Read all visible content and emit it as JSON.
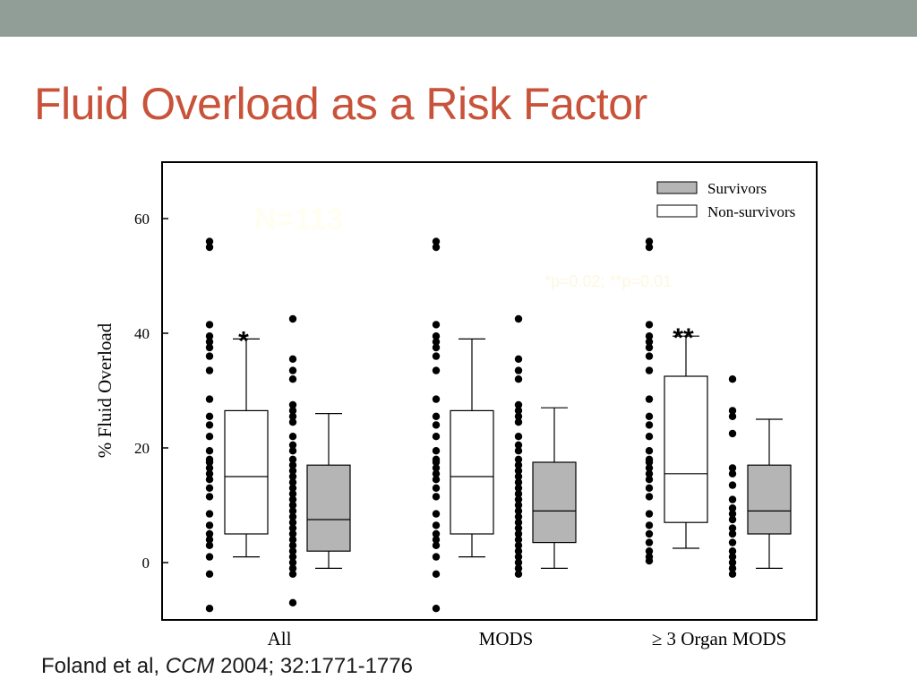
{
  "slide": {
    "title": "Fluid Overload as a Risk Factor",
    "citation_authors": "Foland et al,",
    "citation_journal": "CCM",
    "citation_details": " 2004; 32:1771-1776",
    "top_bar_color": "#909e97",
    "title_color": "#c8533a"
  },
  "chart_data": {
    "type": "box",
    "ylabel": "% Fluid Overload",
    "ylim": [
      -10,
      70
    ],
    "yticks": [
      0,
      20,
      40,
      60
    ],
    "categories": [
      "All",
      "MODS",
      "≥ 3 Organ MODS"
    ],
    "legend": {
      "placement": "top-right",
      "entries": [
        {
          "label": "Survivors",
          "fill": "#b5b5b5"
        },
        {
          "label": "Non-survivors",
          "fill": "#ffffff"
        }
      ]
    },
    "annotations": [
      {
        "text": "N=113",
        "color": "#fffef0"
      },
      {
        "text": "*p=0.02; **p=0.01",
        "color": "#fdf7e0"
      }
    ],
    "significance": [
      {
        "category": 0,
        "series": "Non-survivors",
        "text": "*"
      },
      {
        "category": 2,
        "series": "Non-survivors",
        "text": "**"
      }
    ],
    "series": [
      {
        "name": "Non-survivors",
        "boxes": [
          {
            "low": 1,
            "q1": 5,
            "median": 15,
            "q3": 26.5,
            "high": 39
          },
          {
            "low": 1,
            "q1": 5,
            "median": 15,
            "q3": 26.5,
            "high": 39
          },
          {
            "low": 2.5,
            "q1": 7,
            "median": 15.5,
            "q3": 32.5,
            "high": 39.5
          }
        ],
        "points": [
          [
            56,
            55,
            41.5,
            39.5,
            38.5,
            37.5,
            36,
            33.5,
            28.5,
            25.5,
            24,
            22,
            19.5,
            18,
            17.5,
            16.5,
            15.5,
            14.5,
            13,
            11.5,
            8.5,
            6.5,
            5,
            4,
            3,
            1,
            -2,
            -8
          ],
          [
            56,
            55,
            41.5,
            39.5,
            38.5,
            37.5,
            36,
            33.5,
            28.5,
            25.5,
            24,
            22,
            19.5,
            18,
            17.5,
            16.5,
            15.5,
            14.5,
            13,
            11.5,
            8.5,
            6.5,
            5,
            4,
            3,
            1,
            -2,
            -8
          ],
          [
            56,
            55,
            41.5,
            39.5,
            38.5,
            37.5,
            36,
            33.5,
            28.5,
            25.5,
            24,
            22,
            19.5,
            18,
            17.5,
            16.5,
            15.5,
            14.5,
            13,
            11.5,
            8.5,
            6.5,
            5,
            3.5,
            2,
            1,
            0.3
          ]
        ]
      },
      {
        "name": "Survivors",
        "boxes": [
          {
            "low": -1,
            "q1": 2,
            "median": 7.5,
            "q3": 17,
            "high": 26
          },
          {
            "low": -1,
            "q1": 3.5,
            "median": 9,
            "q3": 17.5,
            "high": 27
          },
          {
            "low": -1,
            "q1": 5,
            "median": 9,
            "q3": 17,
            "high": 25
          }
        ],
        "points": [
          [
            42.5,
            35.5,
            33.5,
            32,
            27.5,
            26.5,
            25.5,
            24.5,
            22,
            20.5,
            19.5,
            18,
            17,
            16,
            15,
            14,
            13,
            12,
            11,
            10,
            9,
            8,
            7,
            6,
            5,
            4,
            3,
            2,
            1,
            0,
            -1,
            -2,
            -7
          ],
          [
            42.5,
            35.5,
            33.5,
            32,
            27.5,
            26.5,
            25.5,
            24.5,
            22,
            20.5,
            19.5,
            18,
            17,
            16,
            15,
            14,
            13,
            12,
            11,
            10,
            9,
            8,
            7,
            6,
            5,
            4,
            3,
            2,
            1,
            0,
            -1,
            -2
          ],
          [
            32,
            26.5,
            25.5,
            22.5,
            16.5,
            15.5,
            13.5,
            11,
            9.5,
            8.5,
            7.5,
            6,
            5,
            3.5,
            2,
            1,
            0,
            -1,
            -2
          ]
        ]
      }
    ]
  }
}
